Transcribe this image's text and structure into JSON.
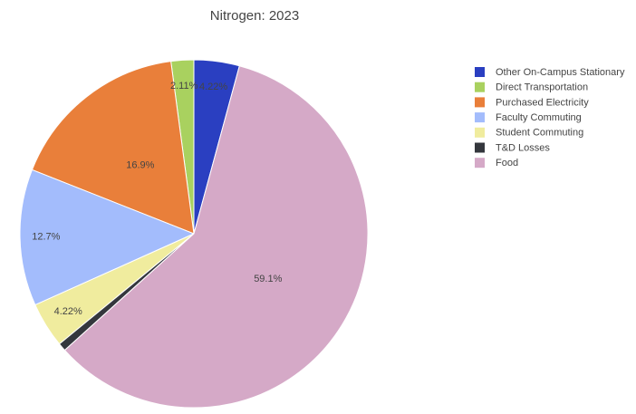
{
  "chart_data": {
    "type": "pie",
    "title": "Nitrogen: 2023",
    "categories": [
      "Other On-Campus Stationary",
      "Direct Transportation",
      "Purchased Electricity",
      "Faculty Commuting",
      "Student Commuting",
      "T&D Losses",
      "Food"
    ],
    "values": [
      4.22,
      2.11,
      16.9,
      12.7,
      4.22,
      0.75,
      59.1
    ],
    "value_labels": [
      "4.22%",
      "2.11%",
      "16.9%",
      "12.7%",
      "4.22%",
      null,
      "59.1%"
    ],
    "colors": [
      "#2a3fc1",
      "#a9d15f",
      "#e97f3a",
      "#a3bcfc",
      "#f0ec9e",
      "#34373d",
      "#d5a9c7"
    ]
  }
}
